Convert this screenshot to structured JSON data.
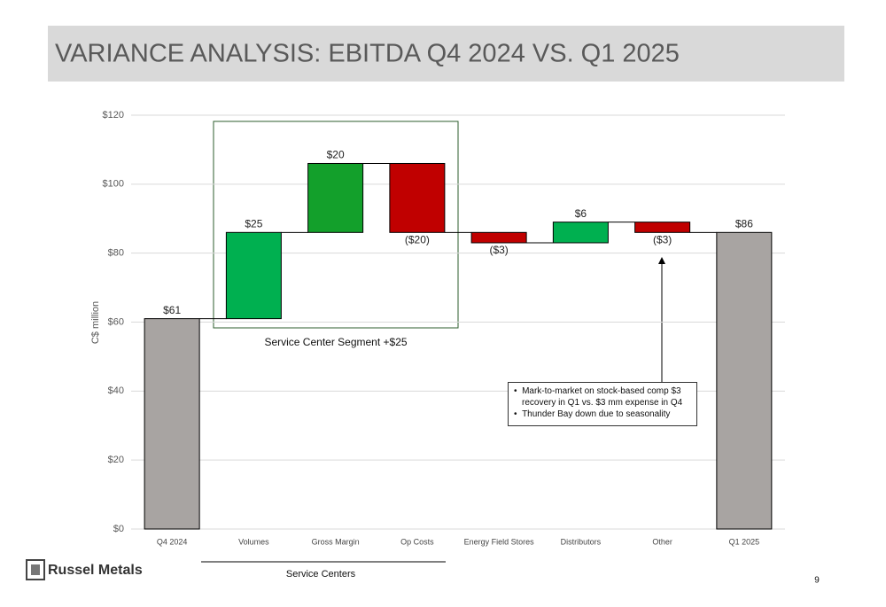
{
  "chart_data": {
    "type": "waterfall",
    "title": "VARIANCE ANALYSIS: EBITDA Q4 2024 VS. Q1 2025",
    "y_label": "C$ million",
    "categories": [
      "Q4 2024",
      "Volumes",
      "Gross Margin",
      "Op Costs",
      "Energy Field Stores",
      "Distributors",
      "Other",
      "Q1 2025"
    ],
    "values": [
      61,
      25,
      20,
      -20,
      -3,
      6,
      -3,
      86
    ],
    "value_labels": [
      "$61",
      "$25",
      "$20",
      "($20)",
      "($3)",
      "$6",
      "($3)",
      "$86"
    ],
    "colors": [
      "#a8a4a2",
      "#00b050",
      "#13a02b",
      "#c00000",
      "#c00000",
      "#00b050",
      "#c00000",
      "#a8a4a2"
    ],
    "ylim": [
      0,
      120
    ],
    "yticks": [
      {
        "value": 0,
        "label": "$0"
      },
      {
        "value": 20,
        "label": "$20"
      },
      {
        "value": 40,
        "label": "$40"
      },
      {
        "value": 60,
        "label": "$60"
      },
      {
        "value": 80,
        "label": "$80"
      },
      {
        "value": 100,
        "label": "$100"
      },
      {
        "value": 120,
        "label": "$120"
      }
    ],
    "grid": true,
    "annotations": {
      "segment": "Service Center Segment +$25",
      "callout": [
        "Mark-to-market on stock-based comp $3 recovery in Q1 vs. $3 mm expense in Q4",
        "Thunder Bay down due to seasonality"
      ],
      "group_label": "Service Centers"
    }
  },
  "slide": {
    "logo": "Russel Metals",
    "page_number": "9"
  }
}
